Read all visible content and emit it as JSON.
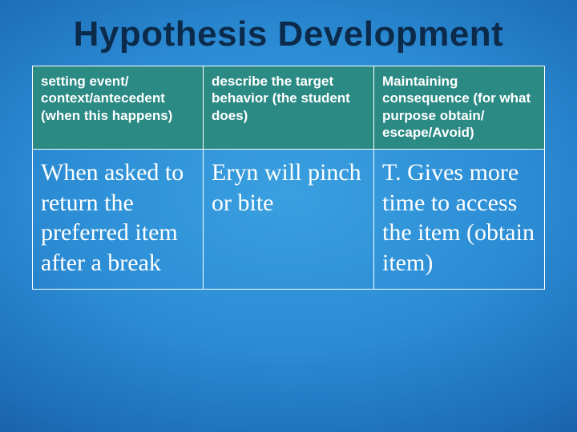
{
  "slide": {
    "title": "Hypothesis Development",
    "background": {
      "gradient_center": "#3aa0e0",
      "gradient_mid": "#1e6fb8",
      "gradient_edge": "#0d3f7e"
    },
    "title_style": {
      "font_family": "Comic Sans MS",
      "font_size_pt": 33,
      "font_weight": "bold",
      "color": "#0c2a4a",
      "align": "center"
    }
  },
  "table": {
    "type": "table",
    "border_color": "#ffffff",
    "header_bg": "#2b8a84",
    "header_text_color": "#ffffff",
    "body_text_color": "#ffffff",
    "header_font": {
      "family": "Arial",
      "size_pt": 13,
      "weight": "bold"
    },
    "body_font": {
      "family": "Georgia",
      "size_pt": 22,
      "weight": "normal"
    },
    "column_widths_pct": [
      33.3,
      33.3,
      33.4
    ],
    "columns": [
      "setting event/ context/antecedent (when this happens)",
      "describe the target behavior (the student does)",
      "Maintaining consequence (for what purpose obtain/ escape/Avoid)"
    ],
    "rows": [
      [
        "When asked to return the preferred item after a break",
        "Eryn will pinch or bite",
        "T. Gives more time to access the item (obtain item)"
      ]
    ]
  }
}
